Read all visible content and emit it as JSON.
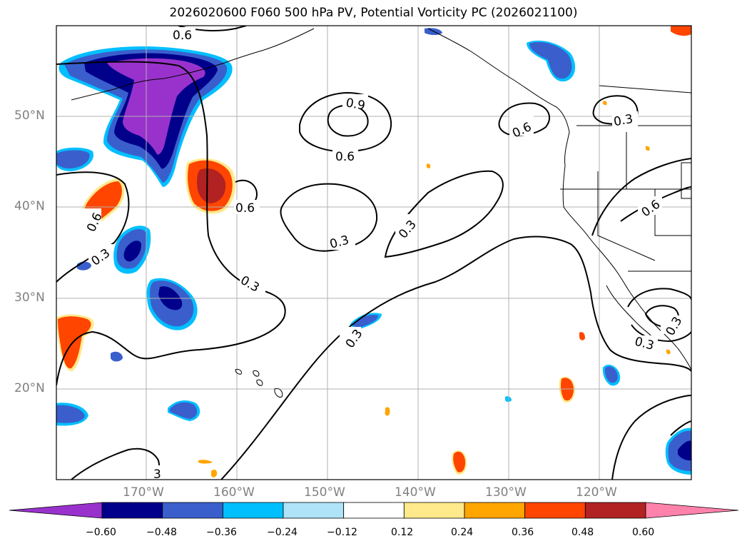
{
  "title": "2026020600 F060 500 hPa PV, Potential Vorticity PC (2026021100)",
  "lat_labels": [
    "50°N",
    "40°N",
    "30°N",
    "20°N"
  ],
  "lon_labels": [
    "170°W",
    "160°W",
    "150°W",
    "140°W",
    "130°W",
    "120°W"
  ],
  "contour_labels": [
    "0.6",
    "0.9",
    "0.6",
    "0.3",
    "0.6",
    "0.3",
    "0.6",
    "0.3",
    "0.3",
    "0.3",
    "0.6",
    "0.3",
    "0.6",
    "0.3",
    "0.3",
    "0.6",
    "0.6",
    "3"
  ],
  "colorbar": {
    "ticks": [
      "−0.60",
      "−0.48",
      "−0.36",
      "−0.24",
      "−0.12",
      "0.12",
      "0.24",
      "0.36",
      "0.48",
      "0.60"
    ],
    "colors": [
      "#9932cc",
      "#00008b",
      "#3a5fcd",
      "#00bfff",
      "#aee3f8",
      "#ffffff",
      "#ffe98a",
      "#ffa500",
      "#ff4500",
      "#b22222",
      "#ff82ab"
    ]
  }
}
